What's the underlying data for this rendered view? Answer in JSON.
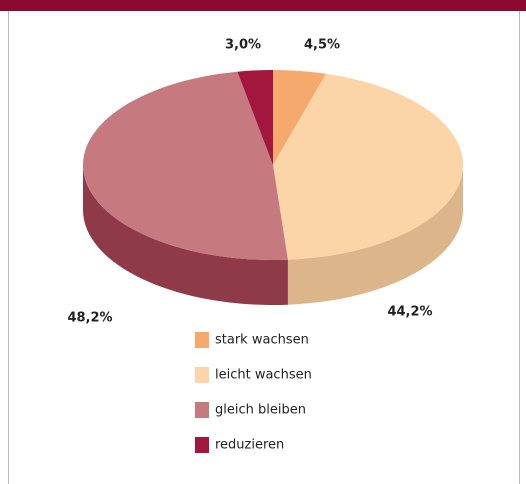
{
  "chart_data": {
    "type": "pie",
    "categories": [
      "stark wachsen",
      "leicht wachsen",
      "gleich bleiben",
      "reduzieren"
    ],
    "values": [
      4.5,
      44.2,
      48.2,
      3.0
    ],
    "value_labels": [
      "4,5%",
      "44,2%",
      "48,2%",
      "3,0%"
    ],
    "colors": [
      "#f5a96c",
      "#fbd5a8",
      "#c67a7f",
      "#a3173f"
    ],
    "side_colors": [
      "#d98a4e",
      "#dcb58a",
      "#8e3a48",
      "#7a0f2e"
    ],
    "legend": "bottom"
  }
}
